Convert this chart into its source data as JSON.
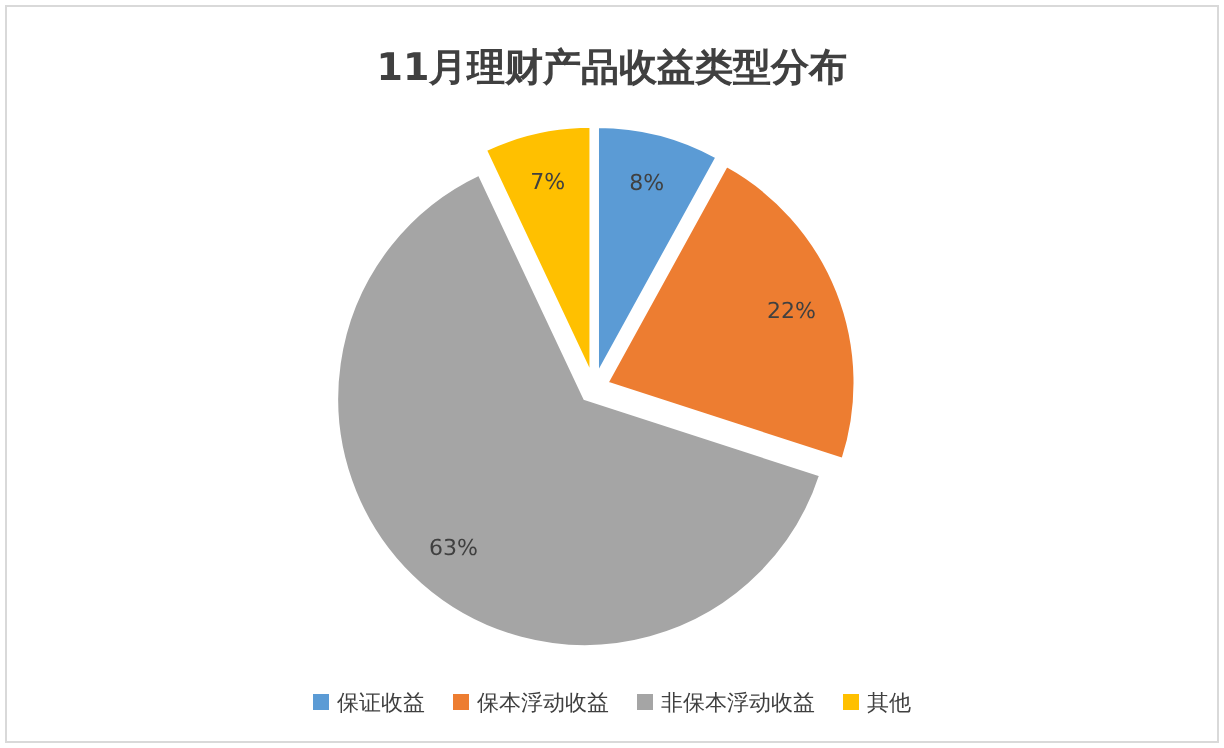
{
  "chart_data": {
    "type": "pie",
    "title": "11月理财产品收益类型分布",
    "categories": [
      "保证收益",
      "保本浮动收益",
      "非保本浮动收益",
      "其他"
    ],
    "values": [
      8,
      22,
      63,
      7
    ],
    "colors": [
      "#5b9bd5",
      "#ed7d31",
      "#a5a5a5",
      "#ffc000"
    ],
    "value_labels": [
      "8%",
      "22%",
      "63%",
      "7%"
    ],
    "legend": "bottom"
  }
}
